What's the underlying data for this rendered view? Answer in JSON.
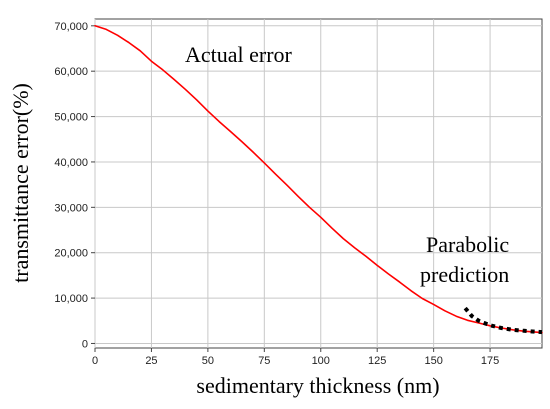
{
  "chart_data": {
    "type": "line",
    "title": "",
    "xlabel": "sedimentary thickness (nm)",
    "ylabel": "transmittance error(%)",
    "xlim": [
      0,
      198
    ],
    "ylim": [
      -1000,
      71500
    ],
    "x_ticks": [
      0,
      25,
      50,
      75,
      100,
      125,
      150,
      175
    ],
    "x_tick_labels": [
      "0",
      "25",
      "50",
      "75",
      "100",
      "125",
      "150",
      "175"
    ],
    "y_ticks": [
      0,
      10000,
      20000,
      30000,
      40000,
      50000,
      60000,
      70000
    ],
    "y_tick_labels": [
      "0",
      "10,000",
      "20,000",
      "30,000",
      "40,000",
      "50,000",
      "60,000",
      "70,000"
    ],
    "grid": true,
    "legend": "none",
    "annotations": [
      {
        "text": "Actual error",
        "near": "top-center"
      },
      {
        "text": "Parabolic",
        "near": "bottom-right"
      },
      {
        "text": "prediction",
        "near": "bottom-right"
      }
    ],
    "series": [
      {
        "label": "Actual error",
        "color": "#ff0000",
        "style": "solid",
        "x": [
          0,
          5,
          10,
          15,
          20,
          25,
          30,
          35,
          40,
          45,
          50,
          55,
          60,
          65,
          70,
          75,
          80,
          85,
          90,
          95,
          100,
          105,
          110,
          115,
          120,
          125,
          130,
          135,
          140,
          145,
          150,
          155,
          160,
          165,
          170,
          175,
          180,
          185,
          190,
          195,
          198
        ],
        "y": [
          70000,
          69200,
          67900,
          66300,
          64500,
          62200,
          60300,
          58200,
          56000,
          53700,
          51200,
          48900,
          46700,
          44500,
          42200,
          39800,
          37300,
          34900,
          32400,
          30000,
          27800,
          25400,
          23100,
          21100,
          19200,
          17200,
          15300,
          13500,
          11600,
          9900,
          8600,
          7200,
          6000,
          5100,
          4500,
          3900,
          3400,
          3000,
          2700,
          2500,
          2400
        ]
      },
      {
        "label": "Parabolic prediction",
        "color": "#000000",
        "style": "dashed",
        "x": [
          164,
          167,
          170,
          175,
          180,
          185,
          190,
          195,
          198
        ],
        "y": [
          7800,
          6000,
          5000,
          4000,
          3400,
          3000,
          2800,
          2600,
          2500
        ]
      }
    ]
  }
}
